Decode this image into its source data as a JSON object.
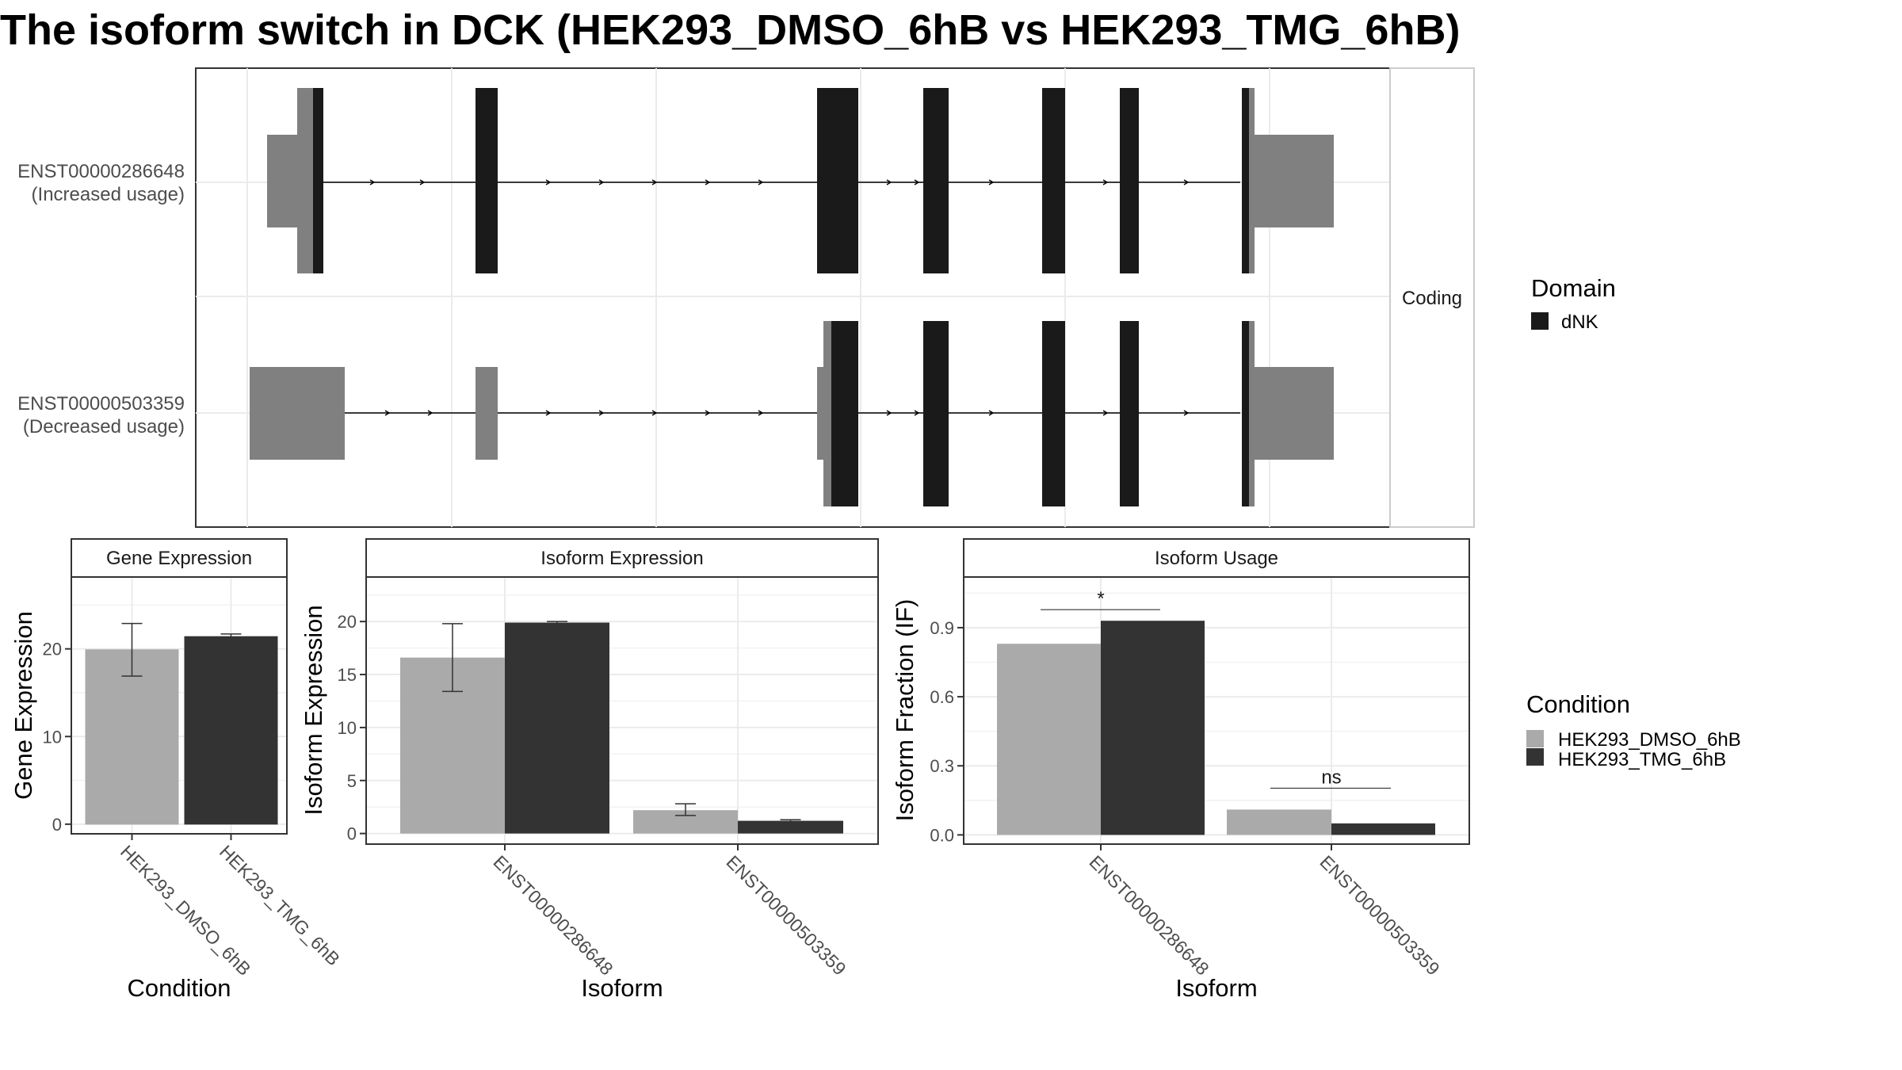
{
  "title": "The isoform switch in DCK (HEK293_DMSO_6hB vs HEK293_TMG_6hB)",
  "structure": {
    "strip_label": "Coding",
    "isoforms": [
      {
        "id": "ENST00000286648",
        "usage": "(Increased usage)"
      },
      {
        "id": "ENST00000503359",
        "usage": "(Decreased usage)"
      }
    ]
  },
  "legends": {
    "domain": {
      "title": "Domain",
      "items": [
        {
          "label": "dNK",
          "color": "#1a1a1a"
        }
      ]
    },
    "condition": {
      "title": "Condition",
      "items": [
        {
          "label": "HEK293_DMSO_6hB",
          "color": "#aaaaaa"
        },
        {
          "label": "HEK293_TMG_6hB",
          "color": "#333333"
        }
      ]
    }
  },
  "colors": {
    "dmso": "#aaaaaa",
    "tmg": "#333333",
    "domain": "#1a1a1a",
    "utr": "#808080"
  },
  "chart_data": [
    {
      "type": "gene_structure",
      "strip": "Coding",
      "rows": [
        "ENST00000286648 (Increased usage)",
        "ENST00000503359 (Decreased usage)"
      ],
      "legend": {
        "title": "Domain",
        "entries": [
          "dNK"
        ]
      }
    },
    {
      "type": "bar",
      "title": "Gene Expression",
      "xlabel": "Condition",
      "ylabel": "Gene Expression",
      "categories": [
        "HEK293_DMSO_6hB",
        "HEK293_TMG_6hB"
      ],
      "values": [
        19.9,
        21.4
      ],
      "errors": [
        [
          16.9,
          22.9
        ],
        [
          21.1,
          21.7
        ]
      ],
      "ylim": [
        -1.1,
        28.2
      ],
      "yticks": [
        0,
        10,
        20
      ]
    },
    {
      "type": "bar",
      "title": "Isoform Expression",
      "xlabel": "Isoform",
      "ylabel": "Isoform Expression",
      "categories": [
        "ENST00000286648",
        "ENST00000503359"
      ],
      "series": [
        {
          "name": "HEK293_DMSO_6hB",
          "values": [
            16.6,
            2.2
          ],
          "errors": [
            [
              13.4,
              19.8
            ],
            [
              1.7,
              2.8
            ]
          ]
        },
        {
          "name": "HEK293_TMG_6hB",
          "values": [
            19.9,
            1.2
          ],
          "errors": [
            [
              19.8,
              20.0
            ],
            [
              1.1,
              1.3
            ]
          ]
        }
      ],
      "ylim": [
        -1.0,
        24.2
      ],
      "yticks": [
        0,
        5,
        10,
        15,
        20
      ]
    },
    {
      "type": "bar",
      "title": "Isoform Usage",
      "xlabel": "Isoform",
      "ylabel": "Isoform Fraction (IF)",
      "categories": [
        "ENST00000286648",
        "ENST00000503359"
      ],
      "series": [
        {
          "name": "HEK293_DMSO_6hB",
          "values": [
            0.83,
            0.11
          ]
        },
        {
          "name": "HEK293_TMG_6hB",
          "values": [
            0.93,
            0.05
          ]
        }
      ],
      "significance": [
        "*",
        "ns"
      ],
      "ylim": [
        -0.04,
        1.12
      ],
      "yticks": [
        0.0,
        0.3,
        0.6,
        0.9
      ],
      "ytick_labels": [
        "0.0",
        "0.3",
        "0.6",
        "0.9"
      ]
    }
  ]
}
